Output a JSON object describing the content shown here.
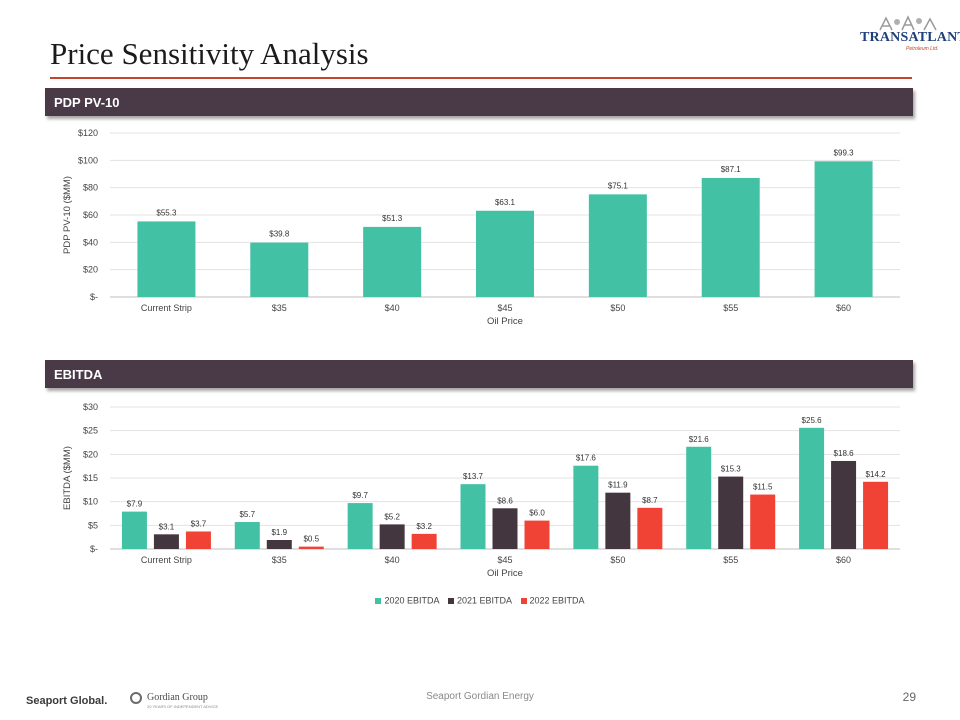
{
  "page": {
    "title": "Price Sensitivity Analysis",
    "footer_center": "Seaport Gordian Energy",
    "page_number": "29"
  },
  "logo": {
    "main": "TRANSATLANTIC",
    "sub": "Petroleum Ltd."
  },
  "footer_logos": {
    "seaport": "Seaport Global.",
    "gordian": "Gordian Group",
    "gordian_sub": "20 YEARS OF INDEPENDENT ADVICE"
  },
  "colors": {
    "teal": "#43c1a4",
    "plum": "#44363f",
    "red": "#f04235",
    "section_bar": "#4a3a48",
    "title_rule": "#c2462e"
  },
  "sections": {
    "pv10": "PDP PV-10",
    "ebitda": "EBITDA"
  },
  "chart_data": [
    {
      "type": "bar",
      "title": "PDP PV-10",
      "categories": [
        "Current Strip",
        "$35",
        "$40",
        "$45",
        "$50",
        "$55",
        "$60"
      ],
      "series": [
        {
          "name": "PDP PV-10",
          "values": [
            55.3,
            39.8,
            51.3,
            63.1,
            75.1,
            87.1,
            99.3
          ],
          "labels": [
            "$55.3",
            "$39.8",
            "$51.3",
            "$63.1",
            "$75.1",
            "$87.1",
            "$99.3"
          ]
        }
      ],
      "xlabel": "Oil Price",
      "ylabel": "PDP PV-10 ($MM)",
      "ylim": [
        0,
        120
      ],
      "yticks": [
        0,
        20,
        40,
        60,
        80,
        100,
        120
      ],
      "ytick_labels": [
        "$-",
        "$20",
        "$40",
        "$60",
        "$80",
        "$100",
        "$120"
      ],
      "grid": true
    },
    {
      "type": "bar",
      "title": "EBITDA",
      "categories": [
        "Current Strip",
        "$35",
        "$40",
        "$45",
        "$50",
        "$55",
        "$60"
      ],
      "series": [
        {
          "name": "2020 EBITDA",
          "values": [
            7.9,
            5.7,
            9.7,
            13.7,
            17.6,
            21.6,
            25.6
          ],
          "labels": [
            "$7.9",
            "$5.7",
            "$9.7",
            "$13.7",
            "$17.6",
            "$21.6",
            "$25.6"
          ]
        },
        {
          "name": "2021 EBITDA",
          "values": [
            3.1,
            1.9,
            5.2,
            8.6,
            11.9,
            15.3,
            18.6
          ],
          "labels": [
            "$3.1",
            "$1.9",
            "$5.2",
            "$8.6",
            "$11.9",
            "$15.3",
            "$18.6"
          ]
        },
        {
          "name": "2022 EBITDA",
          "values": [
            3.7,
            0.5,
            3.2,
            6.0,
            8.7,
            11.5,
            14.2
          ],
          "labels": [
            "$3.7",
            "$0.5",
            "$3.2",
            "$6.0",
            "$8.7",
            "$11.5",
            "$14.2"
          ]
        }
      ],
      "xlabel": "Oil Price",
      "ylabel": "EBITDA ($MM)",
      "ylim": [
        0,
        30
      ],
      "yticks": [
        0,
        5,
        10,
        15,
        20,
        25,
        30
      ],
      "ytick_labels": [
        "$-",
        "$5",
        "$10",
        "$15",
        "$20",
        "$25",
        "$30"
      ],
      "grid": true,
      "legend_position": "bottom"
    }
  ]
}
